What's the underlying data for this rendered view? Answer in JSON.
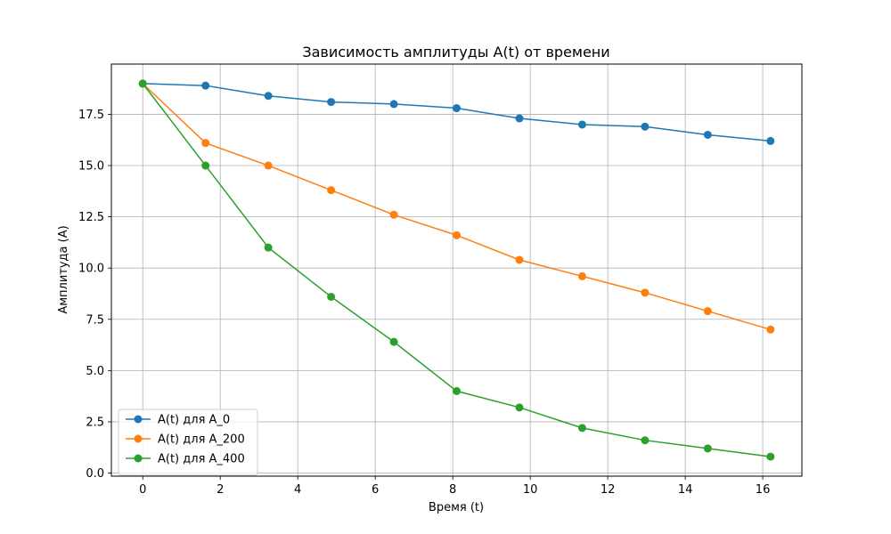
{
  "chart_data": {
    "type": "line",
    "title": "Зависимость амплитуды A(t) от времени",
    "xlabel": "Время (t)",
    "ylabel": "Амплитуда (A)",
    "xlim": [
      -0.81,
      17.01
    ],
    "ylim": [
      -0.15,
      19.95
    ],
    "xticks": [
      0,
      2,
      4,
      6,
      8,
      10,
      12,
      14,
      16
    ],
    "xtick_labels": [
      "0",
      "2",
      "4",
      "6",
      "8",
      "10",
      "12",
      "14",
      "16"
    ],
    "yticks": [
      0.0,
      2.5,
      5.0,
      7.5,
      10.0,
      12.5,
      15.0,
      17.5
    ],
    "ytick_labels": [
      "0.0",
      "2.5",
      "5.0",
      "7.5",
      "10.0",
      "12.5",
      "15.0",
      "17.5"
    ],
    "grid": true,
    "legend_position": "lower-left",
    "x": [
      0,
      1.62,
      3.24,
      4.86,
      6.48,
      8.1,
      9.72,
      11.34,
      12.96,
      14.58,
      16.2
    ],
    "series": [
      {
        "name": "A(t) для A_0",
        "color": "#1f77b4",
        "marker": "circle",
        "values": [
          19.0,
          18.9,
          18.4,
          18.1,
          18.0,
          17.8,
          17.3,
          17.0,
          16.9,
          16.5,
          16.2
        ]
      },
      {
        "name": "A(t) для A_200",
        "color": "#ff7f0e",
        "marker": "circle",
        "values": [
          19.0,
          16.1,
          15.0,
          13.8,
          12.6,
          11.6,
          10.4,
          9.6,
          8.8,
          7.9,
          7.0
        ]
      },
      {
        "name": "A(t) для A_400",
        "color": "#2ca02c",
        "marker": "circle",
        "values": [
          19.0,
          15.0,
          11.0,
          8.6,
          6.4,
          4.0,
          3.2,
          2.2,
          1.6,
          1.2,
          0.8
        ]
      }
    ]
  }
}
